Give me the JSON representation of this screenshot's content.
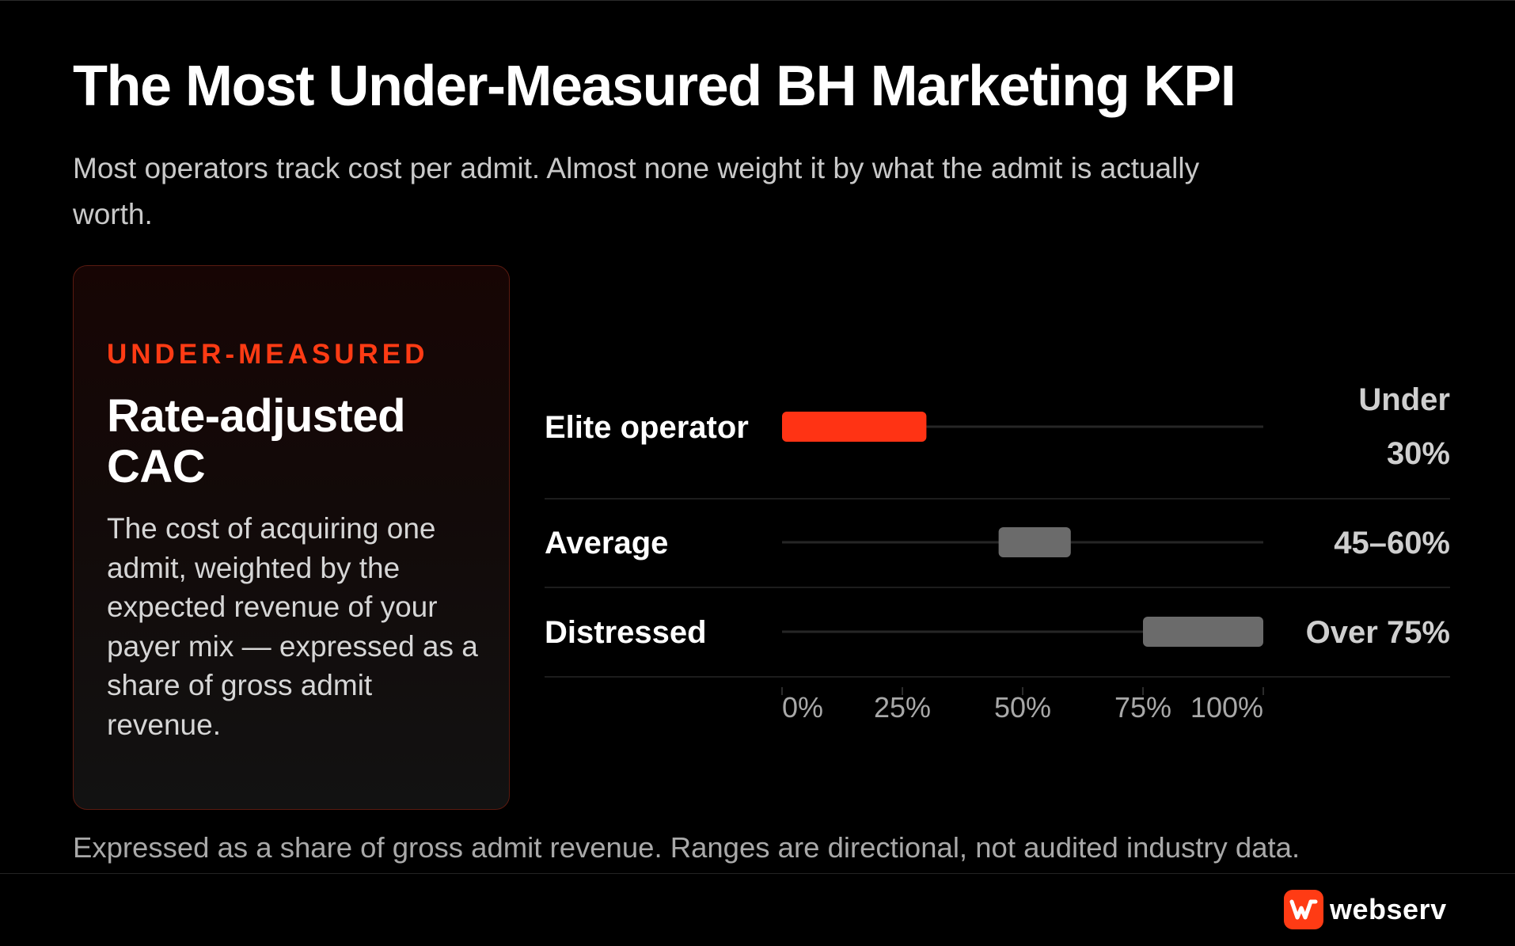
{
  "header": {
    "title": "The Most Under-Measured BH Marketing KPI",
    "subtitle": "Most operators track cost per admit. Almost none weight it by what the admit is actually worth."
  },
  "card": {
    "eyebrow": "UNDER-MEASURED",
    "title": "Rate-adjusted CAC",
    "body": "The cost of acquiring one admit, weighted by the expected revenue of your payer mix — expressed as a share of gross admit revenue."
  },
  "chart_data": {
    "type": "bar",
    "orientation": "horizontal-range",
    "categories": [
      "Elite operator",
      "Average",
      "Distressed"
    ],
    "ranges": [
      [
        0,
        30
      ],
      [
        45,
        60
      ],
      [
        75,
        100
      ]
    ],
    "value_labels": [
      [
        "Under",
        "30%"
      ],
      [
        "45–60%"
      ],
      [
        "Over 75%"
      ]
    ],
    "highlight_color": "#ff3314",
    "bar_color": "#6b6b6b",
    "highlight_index": 0,
    "xlim": [
      0,
      100
    ],
    "xticks": [
      0,
      25,
      50,
      75,
      100
    ],
    "xtick_labels": [
      "0%",
      "25%",
      "50%",
      "75%",
      "100%"
    ],
    "xlabel": "",
    "ylabel": "",
    "grid": false
  },
  "footnote": "Expressed as a share of gross admit revenue. Ranges are directional, not audited industry data.",
  "brand": {
    "name": "webserv",
    "accent": "#ff3b14"
  }
}
